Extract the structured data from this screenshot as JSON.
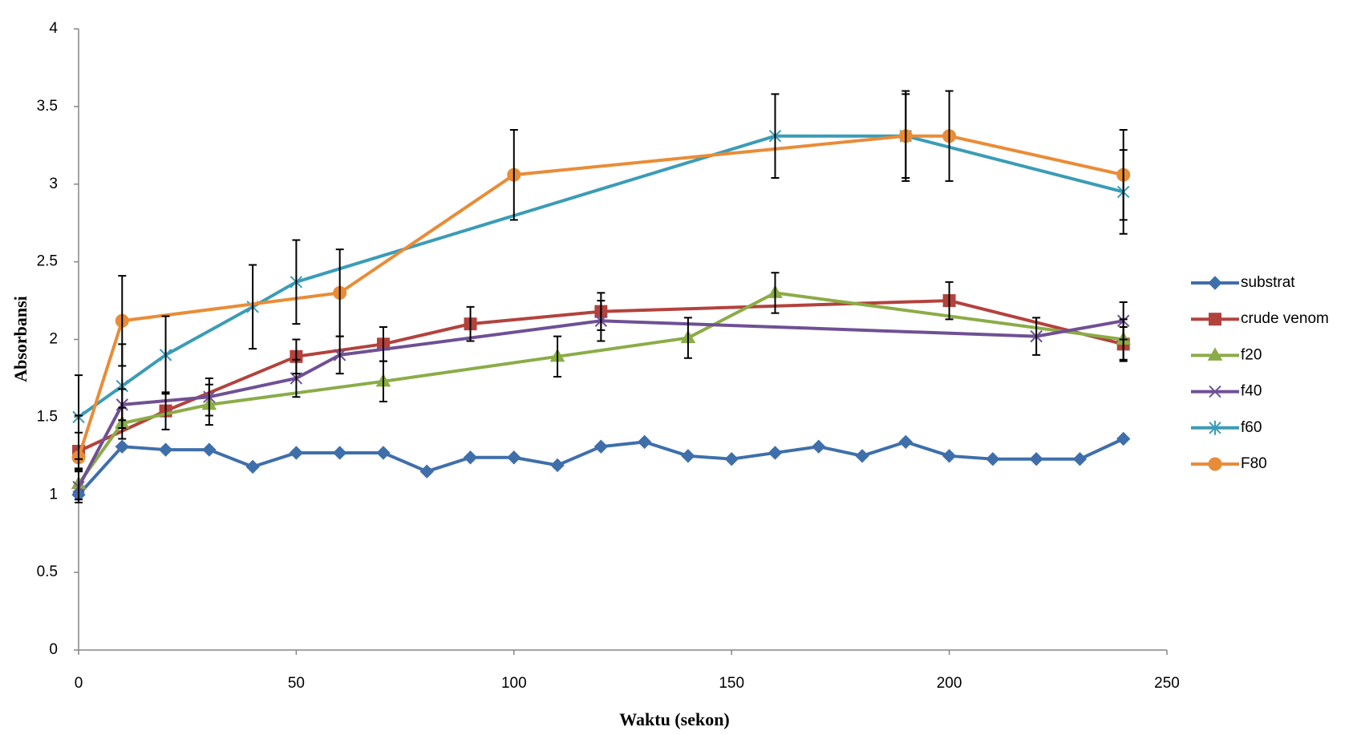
{
  "chart_data": {
    "type": "line",
    "xlabel": "Waktu (sekon)",
    "ylabel": "Absorbansi",
    "xlim": [
      0,
      250
    ],
    "xticks": [
      0,
      50,
      100,
      150,
      200,
      250
    ],
    "ylim": [
      0,
      4
    ],
    "yticks": [
      0,
      0.5,
      1,
      1.5,
      2,
      2.5,
      3,
      3.5,
      4
    ],
    "grid": false,
    "legend": "right",
    "series": [
      {
        "name": "substrat",
        "color": "#3f6fab",
        "marker": "diamond",
        "x": [
          0,
          10,
          20,
          30,
          40,
          50,
          60,
          70,
          80,
          90,
          100,
          110,
          120,
          130,
          140,
          150,
          160,
          170,
          180,
          190,
          200,
          210,
          220,
          230,
          240
        ],
        "values": [
          1.0,
          1.31,
          1.29,
          1.29,
          1.18,
          1.27,
          1.27,
          1.27,
          1.15,
          1.24,
          1.24,
          1.19,
          1.31,
          1.34,
          1.25,
          1.23,
          1.27,
          1.31,
          1.25,
          1.34,
          1.25,
          1.23,
          1.23,
          1.23,
          1.36
        ]
      },
      {
        "name": "crude venom",
        "color": "#b3423d",
        "marker": "square",
        "x": [
          0,
          20,
          50,
          70,
          90,
          120,
          200,
          240
        ],
        "values": [
          1.28,
          1.54,
          1.89,
          1.97,
          2.1,
          2.18,
          2.25,
          1.97
        ],
        "errors": [
          0.12,
          0.12,
          0.11,
          0.11,
          0.11,
          0.12,
          0.12,
          0.11
        ]
      },
      {
        "name": "f20",
        "color": "#8bac47",
        "marker": "triangle",
        "x": [
          0,
          10,
          30,
          70,
          110,
          140,
          160,
          240
        ],
        "values": [
          1.07,
          1.46,
          1.58,
          1.73,
          1.89,
          2.01,
          2.3,
          2.0
        ],
        "errors": [
          0.1,
          0.1,
          0.13,
          0.13,
          0.13,
          0.13,
          0.13,
          0.13
        ]
      },
      {
        "name": "f40",
        "color": "#6f5094",
        "marker": "x",
        "x": [
          0,
          10,
          30,
          50,
          60,
          120,
          220,
          240
        ],
        "values": [
          1.05,
          1.58,
          1.63,
          1.75,
          1.9,
          2.12,
          2.02,
          2.12
        ],
        "errors": [
          0.1,
          0.1,
          0.12,
          0.12,
          0.12,
          0.13,
          0.12,
          0.12
        ]
      },
      {
        "name": "f60",
        "color": "#3b9cb6",
        "marker": "star",
        "x": [
          0,
          10,
          20,
          40,
          50,
          160,
          190,
          240
        ],
        "values": [
          1.5,
          1.7,
          1.9,
          2.21,
          2.37,
          3.31,
          3.31,
          2.95
        ],
        "errors": [
          0.27,
          0.27,
          0.25,
          0.27,
          0.27,
          0.27,
          0.27,
          0.27
        ]
      },
      {
        "name": "F80",
        "color": "#e98c37",
        "marker": "circle",
        "x": [
          0,
          10,
          60,
          100,
          190,
          200,
          240
        ],
        "values": [
          1.24,
          2.12,
          2.3,
          3.06,
          3.31,
          3.31,
          3.06
        ],
        "errors": [
          0.27,
          0.29,
          0.28,
          0.29,
          0.29,
          0.29,
          0.29
        ]
      }
    ]
  }
}
